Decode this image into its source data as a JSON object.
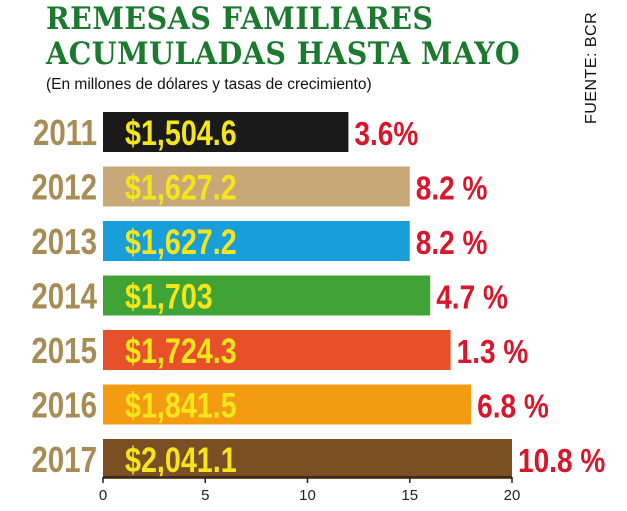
{
  "header": {
    "title_line1": "REMESAS FAMILIARES",
    "title_line2": "ACUMULADAS HASTA MAYO",
    "subtitle": "(En millones de dólares y tasas de crecimiento)",
    "source": "FUENTE: BCR"
  },
  "colors": {
    "title": "#1b7a2f",
    "category_label": "#a88c55",
    "value_label": "#f5e61c",
    "growth_label": "#d8162c",
    "axis": "#222222",
    "source_text": "#111111",
    "subtitle_text": "#111111"
  },
  "chart_data": {
    "type": "bar",
    "orientation": "horizontal",
    "categories": [
      "2011",
      "2012",
      "2013",
      "2014",
      "2015",
      "2016",
      "2017"
    ],
    "values": [
      12,
      15,
      15,
      16,
      17,
      18,
      20
    ],
    "value_labels": [
      "$1,504.6",
      "$1,627.2",
      "$1,627.2",
      "$1,703",
      "$1,724.3",
      "$1,841.5",
      "$2,041.1"
    ],
    "growth_labels": [
      "3.6%",
      "8.2 %",
      "8.2 %",
      "4.7 %",
      "1.3 %",
      "6.8 %",
      "10.8 %"
    ],
    "bar_colors": [
      "#1a1a1a",
      "#c9a877",
      "#189fda",
      "#3fa336",
      "#e6512a",
      "#f39c11",
      "#7a4f24"
    ],
    "xlim": [
      0,
      20
    ],
    "xticks": [
      0,
      5,
      10,
      15,
      20
    ],
    "grid": false,
    "legend": "none"
  }
}
